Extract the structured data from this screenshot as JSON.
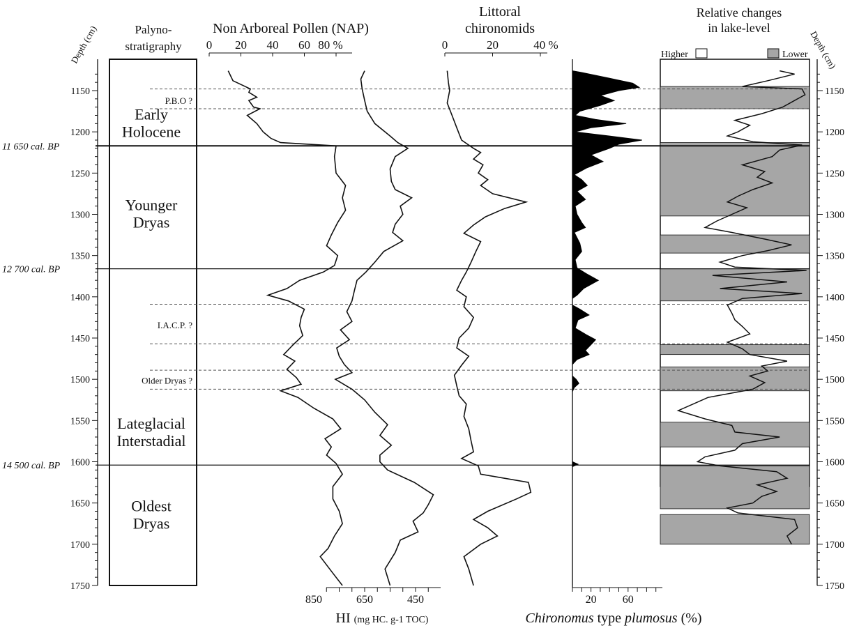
{
  "chart_data": {
    "type": "line",
    "y_axis": {
      "label": "Depth (cm)",
      "range": [
        1125,
        1750
      ],
      "reversed": true,
      "ticks": [
        "1150",
        "1200",
        "1250",
        "1300",
        "1350",
        "1400",
        "1450",
        "1500",
        "1550",
        "1600",
        "1650",
        "1700",
        "1750"
      ],
      "tick_values": [
        1150,
        1200,
        1250,
        1300,
        1350,
        1400,
        1450,
        1500,
        1550,
        1600,
        1650,
        1700,
        1750
      ]
    },
    "palyno": {
      "header_line1": "Palyno-",
      "header_line2": "stratigraphy",
      "zones": [
        {
          "line1": "Early",
          "line2": "Holocene",
          "depth": 1190
        },
        {
          "line1": "Younger",
          "line2": "Dryas",
          "depth": 1300
        },
        {
          "line1": "Lateglacial",
          "line2": "Interstadial",
          "depth": 1565
        },
        {
          "line1": "Oldest",
          "line2": "Dryas",
          "depth": 1665
        }
      ],
      "events": [
        {
          "label": "P.B.O ?",
          "depth": 1162
        },
        {
          "label": "I.A.C.P. ?",
          "depth": 1434
        },
        {
          "label": "Older Dryas ?",
          "depth": 1501
        }
      ]
    },
    "boundaries": [
      {
        "label": "11 650 cal. BP",
        "depth": 1217
      },
      {
        "label": "12 700 cal. BP",
        "depth": 1366
      },
      {
        "label": "14 500 cal. BP",
        "depth": 1604
      }
    ],
    "dashed_lines": [
      1148,
      1172,
      1409,
      1457,
      1489,
      1512
    ],
    "nap": {
      "title": "Non Arboreal Pollen (NAP)",
      "ticks": [
        "0",
        "20",
        "40",
        "60",
        "80 %"
      ],
      "tick_values": [
        0,
        20,
        40,
        60,
        80
      ],
      "range": [
        0,
        100
      ],
      "points": [
        [
          1126,
          12
        ],
        [
          1138,
          15
        ],
        [
          1148,
          26
        ],
        [
          1152,
          25
        ],
        [
          1158,
          30
        ],
        [
          1162,
          25
        ],
        [
          1170,
          28
        ],
        [
          1172,
          32
        ],
        [
          1180,
          24
        ],
        [
          1190,
          30
        ],
        [
          1200,
          34
        ],
        [
          1208,
          39
        ],
        [
          1213,
          45
        ],
        [
          1217,
          80
        ],
        [
          1230,
          79
        ],
        [
          1250,
          80
        ],
        [
          1265,
          86
        ],
        [
          1280,
          84
        ],
        [
          1295,
          86
        ],
        [
          1310,
          81
        ],
        [
          1325,
          77
        ],
        [
          1338,
          74
        ],
        [
          1350,
          81
        ],
        [
          1362,
          79
        ],
        [
          1370,
          72
        ],
        [
          1380,
          57
        ],
        [
          1390,
          49
        ],
        [
          1398,
          37
        ],
        [
          1405,
          50
        ],
        [
          1415,
          60
        ],
        [
          1425,
          58
        ],
        [
          1435,
          57
        ],
        [
          1447,
          59
        ],
        [
          1458,
          53
        ],
        [
          1470,
          47
        ],
        [
          1478,
          54
        ],
        [
          1488,
          49
        ],
        [
          1498,
          55
        ],
        [
          1506,
          58
        ],
        [
          1514,
          45
        ],
        [
          1522,
          56
        ],
        [
          1535,
          66
        ],
        [
          1548,
          78
        ],
        [
          1560,
          83
        ],
        [
          1572,
          73
        ],
        [
          1582,
          77
        ],
        [
          1592,
          74
        ],
        [
          1602,
          80
        ],
        [
          1615,
          84
        ],
        [
          1630,
          78
        ],
        [
          1645,
          78
        ],
        [
          1660,
          82
        ],
        [
          1675,
          84
        ],
        [
          1690,
          79
        ],
        [
          1705,
          75
        ],
        [
          1715,
          70
        ],
        [
          1735,
          78
        ],
        [
          1750,
          84
        ]
      ]
    },
    "hi": {
      "label": "HI",
      "unit": "(mg HC. g-1 TOC)",
      "ticks": [
        "850",
        "650",
        "450"
      ],
      "tick_values": [
        850,
        650,
        450
      ],
      "range": [
        950,
        290
      ],
      "points": [
        [
          1126,
          650
        ],
        [
          1136,
          665
        ],
        [
          1148,
          660
        ],
        [
          1162,
          650
        ],
        [
          1175,
          640
        ],
        [
          1190,
          610
        ],
        [
          1205,
          550
        ],
        [
          1213,
          520
        ],
        [
          1220,
          480
        ],
        [
          1230,
          530
        ],
        [
          1245,
          550
        ],
        [
          1260,
          545
        ],
        [
          1270,
          530
        ],
        [
          1280,
          465
        ],
        [
          1290,
          510
        ],
        [
          1300,
          500
        ],
        [
          1312,
          530
        ],
        [
          1322,
          540
        ],
        [
          1332,
          500
        ],
        [
          1345,
          575
        ],
        [
          1358,
          610
        ],
        [
          1370,
          645
        ],
        [
          1380,
          680
        ],
        [
          1392,
          690
        ],
        [
          1405,
          700
        ],
        [
          1418,
          720
        ],
        [
          1430,
          700
        ],
        [
          1440,
          745
        ],
        [
          1452,
          710
        ],
        [
          1462,
          760
        ],
        [
          1472,
          750
        ],
        [
          1482,
          730
        ],
        [
          1492,
          700
        ],
        [
          1500,
          765
        ],
        [
          1512,
          700
        ],
        [
          1525,
          650
        ],
        [
          1540,
          610
        ],
        [
          1555,
          560
        ],
        [
          1568,
          590
        ],
        [
          1580,
          545
        ],
        [
          1592,
          590
        ],
        [
          1600,
          590
        ],
        [
          1610,
          560
        ],
        [
          1625,
          455
        ],
        [
          1640,
          380
        ],
        [
          1652,
          400
        ],
        [
          1662,
          420
        ],
        [
          1672,
          460
        ],
        [
          1685,
          440
        ],
        [
          1695,
          510
        ],
        [
          1710,
          530
        ],
        [
          1730,
          570
        ],
        [
          1750,
          550
        ]
      ]
    },
    "chironomids": {
      "title_line1": "Littoral",
      "title_line2": "chironomids",
      "ticks": [
        "0",
        "20",
        "40 %"
      ],
      "tick_values": [
        0,
        20,
        40
      ],
      "range": [
        0,
        45
      ],
      "points": [
        [
          1126,
          1
        ],
        [
          1140,
          1.5
        ],
        [
          1150,
          2
        ],
        [
          1165,
          1
        ],
        [
          1180,
          3
        ],
        [
          1195,
          5
        ],
        [
          1210,
          7
        ],
        [
          1220,
          12
        ],
        [
          1225,
          15
        ],
        [
          1233,
          12
        ],
        [
          1240,
          16
        ],
        [
          1250,
          14
        ],
        [
          1258,
          18
        ],
        [
          1265,
          15
        ],
        [
          1275,
          20
        ],
        [
          1285,
          34
        ],
        [
          1293,
          25
        ],
        [
          1303,
          17
        ],
        [
          1313,
          12
        ],
        [
          1323,
          8
        ],
        [
          1333,
          15
        ],
        [
          1345,
          13
        ],
        [
          1358,
          11
        ],
        [
          1370,
          9
        ],
        [
          1380,
          7
        ],
        [
          1392,
          5
        ],
        [
          1400,
          9
        ],
        [
          1412,
          8
        ],
        [
          1425,
          12
        ],
        [
          1438,
          10
        ],
        [
          1450,
          6
        ],
        [
          1462,
          5
        ],
        [
          1472,
          10
        ],
        [
          1483,
          7
        ],
        [
          1495,
          4
        ],
        [
          1508,
          5
        ],
        [
          1520,
          6
        ],
        [
          1530,
          9
        ],
        [
          1545,
          8
        ],
        [
          1560,
          10
        ],
        [
          1575,
          11
        ],
        [
          1588,
          12
        ],
        [
          1596,
          7
        ],
        [
          1605,
          14
        ],
        [
          1615,
          15
        ],
        [
          1625,
          35
        ],
        [
          1637,
          36
        ],
        [
          1645,
          30
        ],
        [
          1660,
          18
        ],
        [
          1670,
          12
        ],
        [
          1680,
          18
        ],
        [
          1690,
          22
        ],
        [
          1700,
          15
        ],
        [
          1715,
          8
        ],
        [
          1730,
          10
        ],
        [
          1750,
          12
        ]
      ]
    },
    "plumosus": {
      "label_italic1": "Chironomus",
      "label_mid": " type ",
      "label_italic2": "plumosus",
      "label_end": " (%)",
      "ticks": [
        "20",
        "60"
      ],
      "tick_values": [
        20,
        60
      ],
      "range": [
        0,
        100
      ],
      "points": [
        [
          1126,
          0
        ],
        [
          1128,
          10
        ],
        [
          1135,
          40
        ],
        [
          1141,
          65
        ],
        [
          1146,
          72
        ],
        [
          1150,
          50
        ],
        [
          1156,
          30
        ],
        [
          1162,
          45
        ],
        [
          1168,
          30
        ],
        [
          1175,
          8
        ],
        [
          1180,
          3
        ],
        [
          1185,
          25
        ],
        [
          1190,
          58
        ],
        [
          1195,
          20
        ],
        [
          1200,
          3
        ],
        [
          1205,
          40
        ],
        [
          1210,
          75
        ],
        [
          1215,
          50
        ],
        [
          1220,
          40
        ],
        [
          1228,
          20
        ],
        [
          1236,
          33
        ],
        [
          1244,
          15
        ],
        [
          1252,
          2
        ],
        [
          1258,
          10
        ],
        [
          1265,
          16
        ],
        [
          1272,
          5
        ],
        [
          1282,
          14
        ],
        [
          1290,
          3
        ],
        [
          1300,
          5
        ],
        [
          1310,
          10
        ],
        [
          1316,
          14
        ],
        [
          1322,
          2
        ],
        [
          1335,
          8
        ],
        [
          1345,
          10
        ],
        [
          1355,
          3
        ],
        [
          1365,
          5
        ],
        [
          1372,
          15
        ],
        [
          1380,
          28
        ],
        [
          1390,
          12
        ],
        [
          1398,
          5
        ],
        [
          1402,
          0
        ],
        [
          1410,
          0
        ],
        [
          1415,
          8
        ],
        [
          1422,
          18
        ],
        [
          1428,
          6
        ],
        [
          1438,
          3
        ],
        [
          1446,
          15
        ],
        [
          1452,
          25
        ],
        [
          1458,
          20
        ],
        [
          1465,
          14
        ],
        [
          1470,
          18
        ],
        [
          1476,
          5
        ],
        [
          1482,
          0
        ],
        [
          1496,
          0
        ],
        [
          1500,
          4
        ],
        [
          1505,
          7
        ],
        [
          1510,
          2
        ],
        [
          1515,
          0
        ],
        [
          1600,
          0
        ],
        [
          1603,
          6
        ],
        [
          1606,
          0
        ],
        [
          1750,
          0
        ]
      ]
    },
    "lake": {
      "title_line1": "Relative changes",
      "title_line2": "in lake-level",
      "higher_label": "Higher",
      "lower_label": "Lower",
      "lower_intervals": [
        [
          1145,
          1172
        ],
        [
          1213,
          1302
        ],
        [
          1325,
          1347
        ],
        [
          1366,
          1405
        ],
        [
          1458,
          1470
        ],
        [
          1485,
          1514
        ],
        [
          1552,
          1582
        ],
        [
          1605,
          1657
        ],
        [
          1664,
          1700
        ]
      ],
      "points": [
        [
          1126,
          0.8
        ],
        [
          1130,
          0.9
        ],
        [
          1138,
          0.72
        ],
        [
          1145,
          0.55
        ],
        [
          1148,
          0.95
        ],
        [
          1155,
          0.97
        ],
        [
          1162,
          0.9
        ],
        [
          1170,
          0.82
        ],
        [
          1178,
          0.68
        ],
        [
          1186,
          0.5
        ],
        [
          1192,
          0.6
        ],
        [
          1200,
          0.52
        ],
        [
          1205,
          0.45
        ],
        [
          1212,
          0.62
        ],
        [
          1216,
          0.95
        ],
        [
          1222,
          0.8
        ],
        [
          1230,
          0.75
        ],
        [
          1240,
          0.55
        ],
        [
          1248,
          0.7
        ],
        [
          1255,
          0.65
        ],
        [
          1262,
          0.75
        ],
        [
          1270,
          0.62
        ],
        [
          1278,
          0.52
        ],
        [
          1285,
          0.45
        ],
        [
          1292,
          0.58
        ],
        [
          1300,
          0.48
        ],
        [
          1308,
          0.38
        ],
        [
          1316,
          0.3
        ],
        [
          1322,
          0.48
        ],
        [
          1330,
          0.7
        ],
        [
          1337,
          0.88
        ],
        [
          1344,
          0.72
        ],
        [
          1350,
          0.55
        ],
        [
          1358,
          0.4
        ],
        [
          1364,
          0.5
        ],
        [
          1368,
          0.98
        ],
        [
          1374,
          0.35
        ],
        [
          1382,
          0.85
        ],
        [
          1390,
          0.4
        ],
        [
          1396,
          0.95
        ],
        [
          1402,
          0.55
        ],
        [
          1410,
          0.45
        ],
        [
          1420,
          0.48
        ],
        [
          1428,
          0.5
        ],
        [
          1436,
          0.55
        ],
        [
          1445,
          0.6
        ],
        [
          1455,
          0.45
        ],
        [
          1463,
          0.55
        ],
        [
          1470,
          0.6
        ],
        [
          1478,
          0.85
        ],
        [
          1484,
          0.68
        ],
        [
          1490,
          0.72
        ],
        [
          1496,
          0.6
        ],
        [
          1504,
          0.7
        ],
        [
          1512,
          0.62
        ],
        [
          1522,
          0.32
        ],
        [
          1530,
          0.22
        ],
        [
          1538,
          0.12
        ],
        [
          1548,
          0.3
        ],
        [
          1556,
          0.48
        ],
        [
          1564,
          0.5
        ],
        [
          1570,
          0.8
        ],
        [
          1578,
          0.55
        ],
        [
          1586,
          0.5
        ],
        [
          1594,
          0.3
        ],
        [
          1600,
          0.25
        ],
        [
          1605,
          0.4
        ],
        [
          1612,
          0.78
        ],
        [
          1620,
          0.85
        ],
        [
          1628,
          0.65
        ],
        [
          1636,
          0.78
        ],
        [
          1642,
          0.68
        ],
        [
          1650,
          0.62
        ],
        [
          1656,
          0.45
        ],
        [
          1662,
          0.52
        ],
        [
          1670,
          0.9
        ],
        [
          1680,
          0.92
        ],
        [
          1690,
          0.85
        ],
        [
          1700,
          0.88
        ]
      ]
    }
  }
}
